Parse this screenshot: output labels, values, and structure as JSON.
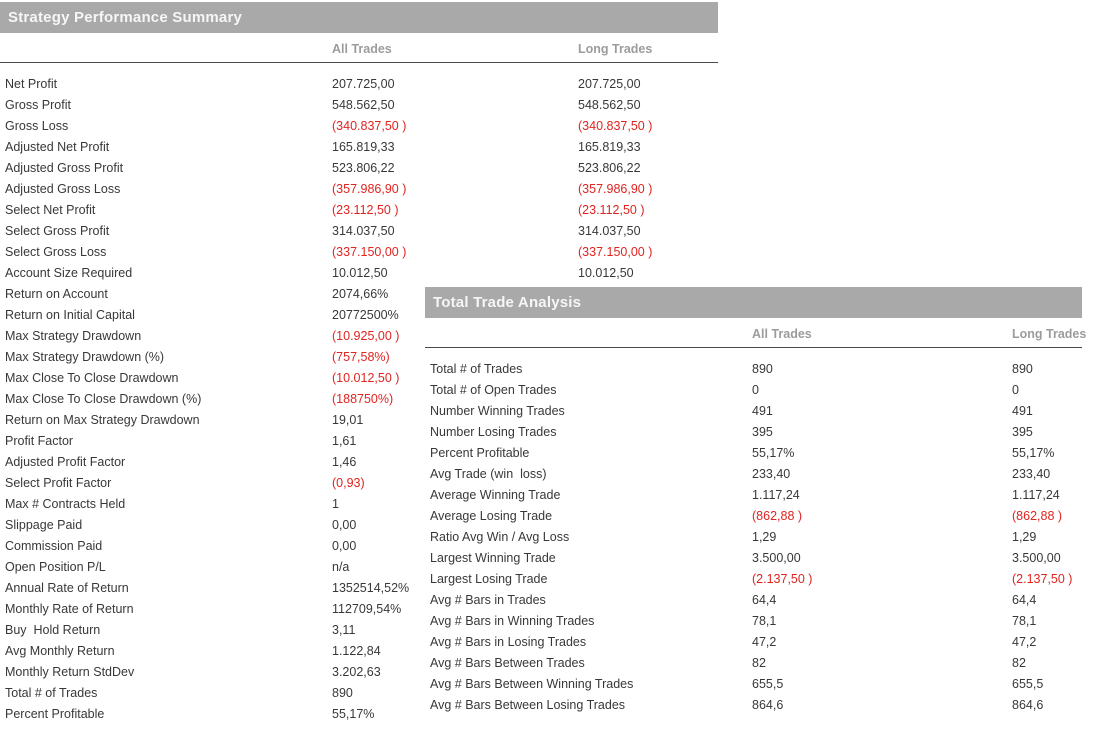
{
  "colors": {
    "header_bg": "#a9a9a9",
    "header_text": "#f6f6f6",
    "col_header": "#9c9c9c",
    "text": "#383838",
    "negative": "#e02420",
    "rule": "#4a4a4a"
  },
  "performance": {
    "title": "Strategy Performance Summary",
    "columns": [
      "All Trades",
      "Long Trades"
    ],
    "rows": [
      {
        "label": "Net Profit",
        "all": "207.725,00",
        "long": "207.725,00",
        "neg": false
      },
      {
        "label": "Gross Profit",
        "all": "548.562,50",
        "long": "548.562,50",
        "neg": false
      },
      {
        "label": "Gross Loss",
        "all": "(340.837,50 )",
        "long": "(340.837,50 )",
        "neg": true
      },
      {
        "label": "Adjusted Net Profit",
        "all": "165.819,33",
        "long": "165.819,33",
        "neg": false
      },
      {
        "label": "Adjusted Gross Profit",
        "all": "523.806,22",
        "long": "523.806,22",
        "neg": false
      },
      {
        "label": "Adjusted Gross Loss",
        "all": "(357.986,90 )",
        "long": "(357.986,90 )",
        "neg": true
      },
      {
        "label": "Select Net Profit",
        "all": "(23.112,50 )",
        "long": "(23.112,50 )",
        "neg": true
      },
      {
        "label": "Select Gross Profit",
        "all": "314.037,50",
        "long": "314.037,50",
        "neg": false
      },
      {
        "label": "Select Gross Loss",
        "all": "(337.150,00 )",
        "long": "(337.150,00 )",
        "neg": true
      },
      {
        "label": "Account Size Required",
        "all": "10.012,50",
        "long": "10.012,50",
        "neg": false
      },
      {
        "label": "Return on Account",
        "all": "2074,66%",
        "long": "",
        "neg": false
      },
      {
        "label": "Return on Initial Capital",
        "all": "20772500%",
        "long": "",
        "neg": false
      },
      {
        "label": "Max Strategy Drawdown",
        "all": "(10.925,00 )",
        "long": "",
        "neg": true
      },
      {
        "label": "Max Strategy Drawdown (%)",
        "all": "(757,58%)",
        "long": "",
        "neg": true
      },
      {
        "label": "Max Close To Close Drawdown",
        "all": "(10.012,50 )",
        "long": "",
        "neg": true
      },
      {
        "label": "Max Close To Close Drawdown (%)",
        "all": "(188750%)",
        "long": "",
        "neg": true
      },
      {
        "label": "Return on Max Strategy Drawdown",
        "all": "19,01",
        "long": "",
        "neg": false
      },
      {
        "label": "Profit Factor",
        "all": "1,61",
        "long": "",
        "neg": false
      },
      {
        "label": "Adjusted Profit Factor",
        "all": "1,46",
        "long": "",
        "neg": false
      },
      {
        "label": "Select Profit Factor",
        "all": "(0,93)",
        "long": "",
        "neg": true
      },
      {
        "label": "Max # Contracts Held",
        "all": "1",
        "long": "",
        "neg": false
      },
      {
        "label": "Slippage Paid",
        "all": "0,00",
        "long": "",
        "neg": false
      },
      {
        "label": "Commission Paid",
        "all": "0,00",
        "long": "",
        "neg": false
      },
      {
        "label": "Open Position P/L",
        "all": "n/a",
        "long": "",
        "neg": false
      },
      {
        "label": "Annual Rate of Return",
        "all": "1352514,52%",
        "long": "",
        "neg": false
      },
      {
        "label": "Monthly Rate of Return",
        "all": "112709,54%",
        "long": "",
        "neg": false
      },
      {
        "label": "Buy  Hold Return",
        "all": "3,11",
        "long": "",
        "neg": false
      },
      {
        "label": "Avg Monthly Return",
        "all": "1.122,84",
        "long": "",
        "neg": false
      },
      {
        "label": "Monthly Return StdDev",
        "all": "3.202,63",
        "long": "",
        "neg": false
      },
      {
        "label": "Total # of Trades",
        "all": "890",
        "long": "",
        "neg": false
      },
      {
        "label": "Percent Profitable",
        "all": "55,17%",
        "long": "",
        "neg": false
      }
    ]
  },
  "trade_analysis": {
    "title": "Total Trade Analysis",
    "columns": [
      "All Trades",
      "Long Trades"
    ],
    "rows": [
      {
        "label": "Total # of Trades",
        "all": "890",
        "long": "890",
        "neg": false
      },
      {
        "label": "Total # of Open Trades",
        "all": "0",
        "long": "0",
        "neg": false
      },
      {
        "label": "Number Winning Trades",
        "all": "491",
        "long": "491",
        "neg": false
      },
      {
        "label": "Number Losing Trades",
        "all": "395",
        "long": "395",
        "neg": false
      },
      {
        "label": "Percent Profitable",
        "all": "55,17%",
        "long": "55,17%",
        "neg": false
      },
      {
        "label": "Avg Trade (win  loss)",
        "all": "233,40",
        "long": "233,40",
        "neg": false
      },
      {
        "label": "Average Winning Trade",
        "all": "1.117,24",
        "long": "1.117,24",
        "neg": false
      },
      {
        "label": "Average Losing Trade",
        "all": "(862,88 )",
        "long": "(862,88 )",
        "neg": true
      },
      {
        "label": "Ratio Avg Win / Avg Loss",
        "all": "1,29",
        "long": "1,29",
        "neg": false
      },
      {
        "label": "Largest Winning Trade",
        "all": "3.500,00",
        "long": "3.500,00",
        "neg": false
      },
      {
        "label": "Largest Losing Trade",
        "all": "(2.137,50 )",
        "long": "(2.137,50 )",
        "neg": true
      },
      {
        "label": "Avg # Bars in Trades",
        "all": "64,4",
        "long": "64,4",
        "neg": false
      },
      {
        "label": "Avg # Bars in Winning Trades",
        "all": "78,1",
        "long": "78,1",
        "neg": false
      },
      {
        "label": "Avg # Bars in Losing Trades",
        "all": "47,2",
        "long": "47,2",
        "neg": false
      },
      {
        "label": "Avg # Bars Between Trades",
        "all": "82",
        "long": "82",
        "neg": false
      },
      {
        "label": "Avg # Bars Between Winning Trades",
        "all": "655,5",
        "long": "655,5",
        "neg": false
      },
      {
        "label": "Avg # Bars Between Losing Trades",
        "all": "864,6",
        "long": "864,6",
        "neg": false
      }
    ]
  }
}
